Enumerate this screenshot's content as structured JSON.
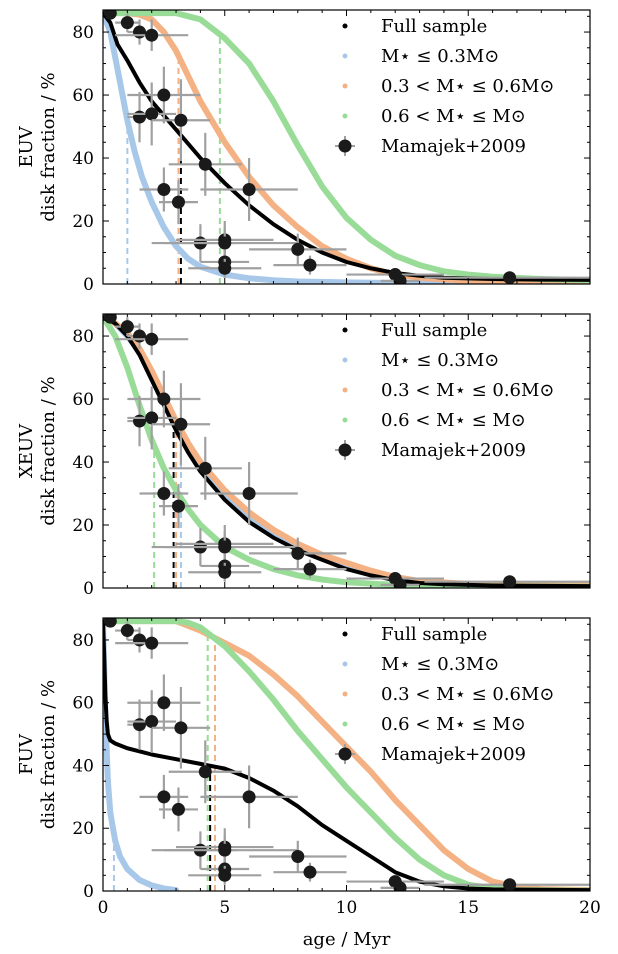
{
  "figure": {
    "xlabel": "age / Myr"
  },
  "legend": {
    "entries": [
      {
        "key": "full",
        "label": "Full sample",
        "color": "#000000"
      },
      {
        "key": "low",
        "label": "M⋆ ≤ 0.3M⊙",
        "color": "#a8c8ea"
      },
      {
        "key": "mid",
        "label": "0.3 < M⋆ ≤ 0.6M⊙",
        "color": "#f4b183"
      },
      {
        "key": "high",
        "label": "0.6 < M⋆ ≤ M⊙",
        "color": "#98dc98"
      },
      {
        "key": "obs",
        "label": "Mamajek+2009",
        "color": "#1a1a1a"
      }
    ]
  },
  "chart_data": [
    {
      "type": "line",
      "panel": "EUV",
      "ylabel_line1": "EUV",
      "ylabel_line2": "disk fraction / %",
      "xlim": [
        0,
        20
      ],
      "ylim": [
        0,
        87
      ],
      "xticks": [
        0,
        5,
        10,
        15,
        20
      ],
      "yticks": [
        0,
        20,
        40,
        60,
        80
      ],
      "show_x_tick_labels": false,
      "series": [
        {
          "key": "full",
          "x": [
            0,
            0.3,
            0.6,
            1,
            1.5,
            2,
            3,
            4,
            5,
            6,
            7,
            8,
            9,
            10,
            11,
            12,
            13,
            14,
            16,
            18,
            20
          ],
          "values": [
            86,
            83,
            76,
            71,
            64,
            58,
            49,
            40,
            32,
            25,
            19,
            14,
            10,
            7,
            5,
            3.5,
            2.6,
            2,
            1.6,
            1.4,
            1.3
          ]
        },
        {
          "key": "low",
          "x": [
            0,
            0.3,
            0.5,
            0.8,
            1,
            1.3,
            1.6,
            2,
            2.5,
            3,
            3.5,
            4,
            5,
            6,
            7,
            8,
            10,
            12,
            15,
            20
          ],
          "values": [
            86,
            80,
            72,
            60,
            52,
            42,
            34,
            26,
            18,
            12,
            8,
            5.5,
            3,
            1.8,
            1.2,
            0.8,
            0.5,
            0.3,
            0.2,
            0.1
          ]
        },
        {
          "key": "mid",
          "x": [
            0,
            1,
            1.5,
            2,
            2.5,
            3,
            3.5,
            4,
            5,
            6,
            7,
            8,
            9,
            10,
            11,
            12,
            13,
            15,
            17,
            20
          ],
          "values": [
            86,
            86,
            85.5,
            84,
            80,
            74,
            66,
            58,
            45,
            34,
            25,
            18,
            12,
            8,
            5,
            3,
            2,
            1,
            0.5,
            0.3
          ]
        },
        {
          "key": "high",
          "x": [
            0,
            2,
            3,
            3.5,
            4,
            5,
            6,
            7,
            8,
            9,
            10,
            11,
            12,
            13,
            14,
            15,
            16,
            18,
            20
          ],
          "values": [
            86,
            86,
            86,
            85,
            84,
            78,
            70,
            58,
            44,
            31,
            21,
            14,
            9,
            6,
            4,
            3,
            2.3,
            1.6,
            1.2
          ]
        }
      ],
      "vlines": [
        {
          "key": "low",
          "x": 1.0
        },
        {
          "key": "mid",
          "x": 3.1
        },
        {
          "key": "full",
          "x": 3.2
        },
        {
          "key": "high",
          "x": 4.8
        }
      ],
      "observations_ref": "obs"
    },
    {
      "type": "line",
      "panel": "XEUV",
      "ylabel_line1": "XEUV",
      "ylabel_line2": "disk fraction / %",
      "xlim": [
        0,
        20
      ],
      "ylim": [
        0,
        87
      ],
      "xticks": [
        0,
        5,
        10,
        15,
        20
      ],
      "yticks": [
        0,
        20,
        40,
        60,
        80
      ],
      "show_x_tick_labels": false,
      "series": [
        {
          "key": "full",
          "x": [
            0,
            0.5,
            1,
            1.5,
            2,
            2.5,
            3,
            3.5,
            4,
            5,
            6,
            7,
            8,
            9,
            10,
            11,
            12,
            13,
            14,
            16,
            20
          ],
          "values": [
            86,
            84,
            80,
            74,
            66,
            58,
            50,
            43,
            37,
            28,
            21,
            16,
            12,
            9,
            6,
            4,
            2.5,
            1.6,
            1.2,
            0.8,
            0.6
          ]
        },
        {
          "key": "low",
          "x": [
            0,
            0.5,
            1,
            1.5,
            2,
            2.5,
            3,
            3.5,
            4,
            5,
            6,
            7,
            8,
            9,
            10,
            11,
            12,
            13,
            15,
            20
          ],
          "values": [
            86,
            84,
            80,
            75,
            68,
            60,
            52,
            45,
            39,
            30,
            23,
            17,
            13,
            9.5,
            7,
            4.5,
            2.8,
            1.8,
            1,
            0.6
          ]
        },
        {
          "key": "mid",
          "x": [
            0,
            0.5,
            1,
            1.5,
            2,
            2.5,
            3,
            3.5,
            4,
            5,
            6,
            7,
            8,
            9,
            10,
            11,
            12,
            13,
            15,
            20
          ],
          "values": [
            86,
            84,
            81,
            76,
            69,
            61,
            53,
            46,
            40,
            31,
            24,
            18.5,
            14,
            10.5,
            8,
            5.5,
            3.5,
            2.2,
            1.3,
            0.9
          ]
        },
        {
          "key": "high",
          "x": [
            0,
            0.5,
            1,
            1.5,
            2,
            2.5,
            3,
            3.5,
            4,
            5,
            6,
            7,
            8,
            9,
            10,
            12,
            14,
            20
          ],
          "values": [
            86,
            80,
            70,
            58,
            47,
            38,
            31,
            25,
            20,
            13,
            9,
            6,
            4,
            2.7,
            1.8,
            1,
            0.6,
            0.4
          ]
        }
      ],
      "vlines": [
        {
          "key": "high",
          "x": 2.1
        },
        {
          "key": "full",
          "x": 2.9
        },
        {
          "key": "mid",
          "x": 3.0
        },
        {
          "key": "low",
          "x": 3.2
        }
      ],
      "observations_ref": "obs"
    },
    {
      "type": "line",
      "panel": "FUV",
      "ylabel_line1": "FUV",
      "ylabel_line2": "disk fraction / %",
      "xlim": [
        0,
        20
      ],
      "ylim": [
        0,
        87
      ],
      "xticks": [
        0,
        5,
        10,
        15,
        20
      ],
      "yticks": [
        0,
        20,
        40,
        60,
        80
      ],
      "show_x_tick_labels": true,
      "series": [
        {
          "key": "full",
          "x": [
            0,
            0.05,
            0.1,
            0.15,
            0.2,
            0.3,
            0.5,
            1,
            2,
            3,
            4,
            5,
            6,
            7,
            8,
            9,
            10,
            11,
            12,
            13,
            14,
            15,
            16,
            20
          ],
          "values": [
            86,
            75,
            62,
            54,
            50,
            48,
            47,
            45.5,
            43.5,
            42,
            40.5,
            39,
            36,
            32,
            27,
            21,
            16,
            11,
            6,
            3,
            1.5,
            0.8,
            0.5,
            0.3
          ]
        },
        {
          "key": "low",
          "x": [
            0,
            0.1,
            0.2,
            0.3,
            0.5,
            0.7,
            1,
            1.5,
            2,
            2.5,
            3
          ],
          "values": [
            86,
            55,
            35,
            25,
            16,
            11,
            7,
            3.5,
            1.8,
            0.8,
            0.3
          ]
        },
        {
          "key": "mid",
          "x": [
            0,
            2,
            3,
            4,
            5,
            6,
            7,
            8,
            9,
            10,
            11,
            12,
            13,
            14,
            15,
            16,
            17,
            18,
            20
          ],
          "values": [
            86,
            86,
            86,
            83,
            79,
            75,
            69,
            62,
            54,
            46,
            38,
            29,
            21,
            13,
            7,
            3,
            1.3,
            0.6,
            0.3
          ]
        },
        {
          "key": "high",
          "x": [
            0,
            2,
            3,
            3.5,
            4,
            5,
            6,
            7,
            8,
            9,
            10,
            11,
            12,
            13,
            14,
            15,
            16,
            17,
            20
          ],
          "values": [
            86,
            86,
            86,
            85.5,
            84,
            78,
            70,
            61,
            51,
            42,
            33,
            25,
            17,
            10,
            5,
            2,
            0.8,
            0.3,
            0.1
          ]
        }
      ],
      "vlines": [
        {
          "key": "low",
          "x": 0.45
        },
        {
          "key": "high",
          "x": 4.3
        },
        {
          "key": "full",
          "x": 4.4
        },
        {
          "key": "mid",
          "x": 4.6
        }
      ],
      "observations_ref": "obs"
    }
  ],
  "observations": {
    "name": "Mamajek+2009",
    "points": [
      {
        "x": 0.3,
        "y": 86,
        "xerr": 0.1,
        "yerr": 2
      },
      {
        "x": 1.0,
        "y": 83,
        "xerr": 0.5,
        "yerr": 3
      },
      {
        "x": 1.5,
        "y": 80,
        "xerr": 0.5,
        "yerr": 4
      },
      {
        "x": 2.0,
        "y": 79,
        "xerr": 1.5,
        "yerr": 5
      },
      {
        "x": 2.5,
        "y": 60,
        "xerr": 1.5,
        "yerr": 9
      },
      {
        "x": 1.5,
        "y": 53,
        "xerr": 0.5,
        "yerr": 8
      },
      {
        "x": 2.0,
        "y": 54,
        "xerr": 1.0,
        "yerr": 10
      },
      {
        "x": 3.2,
        "y": 52,
        "xerr": 1.2,
        "yerr": 13
      },
      {
        "x": 2.5,
        "y": 30,
        "xerr": 1.0,
        "yerr": 7
      },
      {
        "x": 3.1,
        "y": 26,
        "xerr": 0.8,
        "yerr": 7
      },
      {
        "x": 4.2,
        "y": 38,
        "xerr": 1.5,
        "yerr": 10
      },
      {
        "x": 6.0,
        "y": 30,
        "xerr": 2.0,
        "yerr": 10
      },
      {
        "x": 4.0,
        "y": 13,
        "xerr": 1.5,
        "yerr": 6
      },
      {
        "x": 5.0,
        "y": 14,
        "xerr": 2.0,
        "yerr": 6
      },
      {
        "x": 5.0,
        "y": 13,
        "xerr": 3.0,
        "yerr": 5
      },
      {
        "x": 5.0,
        "y": 7,
        "xerr": 1.0,
        "yerr": 4
      },
      {
        "x": 5.0,
        "y": 5,
        "xerr": 1.5,
        "yerr": 3
      },
      {
        "x": 8.0,
        "y": 11,
        "xerr": 2.0,
        "yerr": 5
      },
      {
        "x": 8.5,
        "y": 6,
        "xerr": 1.5,
        "yerr": 3
      },
      {
        "x": 12.0,
        "y": 3,
        "xerr": 2.0,
        "yerr": 2
      },
      {
        "x": 12.2,
        "y": 1,
        "xerr": 0.8,
        "yerr": 1
      },
      {
        "x": 16.7,
        "y": 2,
        "xerr": 3.5,
        "yerr": 1.5
      }
    ]
  }
}
